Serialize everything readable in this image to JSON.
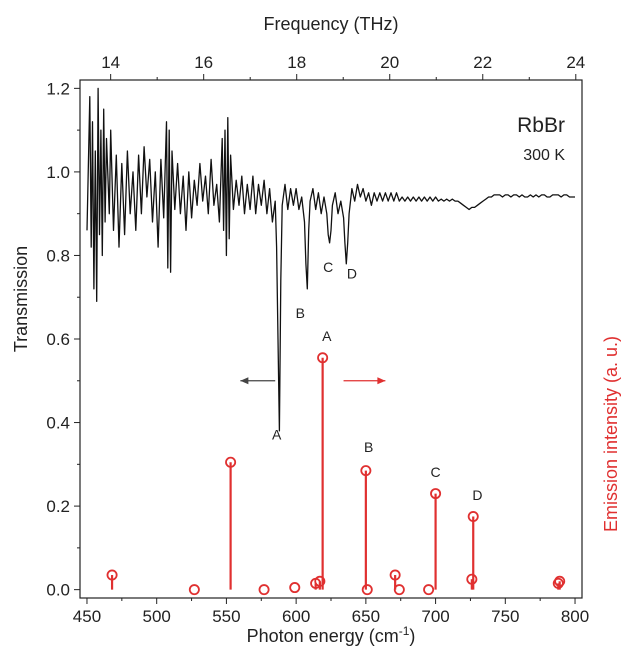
{
  "chart_data": {
    "type": "line",
    "x_axis": {
      "label": "Photon energy (cm",
      "label_sup": "-1",
      "label_suffix": ")",
      "range": [
        445,
        805
      ],
      "ticks": [
        450,
        500,
        550,
        600,
        650,
        700,
        750,
        800
      ]
    },
    "top_axis": {
      "label": "Frequency (THz)",
      "ticks": [
        14,
        16,
        18,
        20,
        22,
        24
      ],
      "cm1_per_thz": 33.356
    },
    "y_axis": {
      "label": "Transmission",
      "range": [
        -0.02,
        1.22
      ],
      "ticks": [
        0.0,
        0.2,
        0.4,
        0.6,
        0.8,
        1.0,
        1.2
      ],
      "tick_labels": [
        "0.0",
        "0.2",
        "0.4",
        "0.6",
        "0.8",
        "1.0",
        "1.2"
      ]
    },
    "y2_label": "Emission intensity (a. u.)",
    "sample_label": "RbBr",
    "temperature_label": "300 K",
    "series": [
      {
        "name": "Transmission",
        "color": "#111111",
        "style": "line",
        "points": [
          [
            450,
            0.86
          ],
          [
            452,
            1.18
          ],
          [
            453,
            0.82
          ],
          [
            454,
            1.12
          ],
          [
            455,
            0.72
          ],
          [
            456,
            1.05
          ],
          [
            457,
            0.69
          ],
          [
            458,
            1.2
          ],
          [
            459,
            0.85
          ],
          [
            460,
            1.1
          ],
          [
            461,
            0.8
          ],
          [
            462,
            1.15
          ],
          [
            463,
            0.88
          ],
          [
            464,
            1.08
          ],
          [
            466,
            0.9
          ],
          [
            467,
            1.1
          ],
          [
            469,
            0.86
          ],
          [
            471,
            1.04
          ],
          [
            473,
            0.82
          ],
          [
            475,
            1.02
          ],
          [
            477,
            0.85
          ],
          [
            479,
            1.05
          ],
          [
            481,
            0.9
          ],
          [
            483,
            1.0
          ],
          [
            485,
            0.86
          ],
          [
            487,
            1.04
          ],
          [
            489,
            0.9
          ],
          [
            491,
            1.06
          ],
          [
            493,
            0.94
          ],
          [
            495,
            1.03
          ],
          [
            497,
            0.88
          ],
          [
            499,
            1.0
          ],
          [
            501,
            0.82
          ],
          [
            503,
            1.03
          ],
          [
            505,
            0.89
          ],
          [
            507,
            1.12
          ],
          [
            508,
            0.77
          ],
          [
            509,
            1.1
          ],
          [
            510,
            0.76
          ],
          [
            511,
            1.05
          ],
          [
            513,
            0.91
          ],
          [
            515,
            1.02
          ],
          [
            517,
            0.9
          ],
          [
            519,
            0.99
          ],
          [
            521,
            0.86
          ],
          [
            523,
            1.0
          ],
          [
            525,
            0.89
          ],
          [
            527,
            0.98
          ],
          [
            529,
            0.92
          ],
          [
            531,
            1.02
          ],
          [
            533,
            0.93
          ],
          [
            535,
            0.99
          ],
          [
            537,
            0.9
          ],
          [
            539,
            1.03
          ],
          [
            541,
            0.92
          ],
          [
            543,
            0.97
          ],
          [
            545,
            0.88
          ],
          [
            547,
            1.08
          ],
          [
            548,
            0.86
          ],
          [
            549,
            1.1
          ],
          [
            550,
            0.8
          ],
          [
            551,
            1.13
          ],
          [
            552,
            0.84
          ],
          [
            553,
            1.04
          ],
          [
            555,
            0.91
          ],
          [
            557,
            0.98
          ],
          [
            559,
            0.92
          ],
          [
            561,
            0.99
          ],
          [
            563,
            0.9
          ],
          [
            565,
            0.97
          ],
          [
            567,
            0.91
          ],
          [
            569,
            0.99
          ],
          [
            571,
            0.9
          ],
          [
            573,
            0.97
          ],
          [
            575,
            0.92
          ],
          [
            577,
            0.98
          ],
          [
            579,
            0.9
          ],
          [
            581,
            0.96
          ],
          [
            583,
            0.88
          ],
          [
            585,
            0.93
          ],
          [
            586,
            0.82
          ],
          [
            587,
            0.6
          ],
          [
            588,
            0.38
          ],
          [
            589,
            0.74
          ],
          [
            590,
            0.92
          ],
          [
            592,
            0.97
          ],
          [
            594,
            0.91
          ],
          [
            596,
            0.96
          ],
          [
            598,
            0.92
          ],
          [
            600,
            0.96
          ],
          [
            602,
            0.91
          ],
          [
            604,
            0.94
          ],
          [
            606,
            0.88
          ],
          [
            607,
            0.78
          ],
          [
            608,
            0.72
          ],
          [
            609,
            0.86
          ],
          [
            610,
            0.93
          ],
          [
            612,
            0.96
          ],
          [
            614,
            0.91
          ],
          [
            616,
            0.95
          ],
          [
            618,
            0.9
          ],
          [
            620,
            0.94
          ],
          [
            622,
            0.9
          ],
          [
            623,
            0.85
          ],
          [
            624,
            0.83
          ],
          [
            625,
            0.86
          ],
          [
            626,
            0.92
          ],
          [
            628,
            0.95
          ],
          [
            630,
            0.9
          ],
          [
            632,
            0.93
          ],
          [
            634,
            0.89
          ],
          [
            635,
            0.83
          ],
          [
            636,
            0.78
          ],
          [
            637,
            0.83
          ],
          [
            638,
            0.9
          ],
          [
            640,
            0.96
          ],
          [
            642,
            0.93
          ],
          [
            644,
            0.97
          ],
          [
            646,
            0.94
          ],
          [
            648,
            0.96
          ],
          [
            650,
            0.93
          ],
          [
            652,
            0.95
          ],
          [
            654,
            0.92
          ],
          [
            656,
            0.95
          ],
          [
            658,
            0.93
          ],
          [
            660,
            0.95
          ],
          [
            662,
            0.93
          ],
          [
            664,
            0.95
          ],
          [
            666,
            0.93
          ],
          [
            668,
            0.95
          ],
          [
            670,
            0.93
          ],
          [
            672,
            0.95
          ],
          [
            674,
            0.93
          ],
          [
            676,
            0.94
          ],
          [
            678,
            0.93
          ],
          [
            680,
            0.94
          ],
          [
            682,
            0.93
          ],
          [
            684,
            0.94
          ],
          [
            686,
            0.93
          ],
          [
            688,
            0.94
          ],
          [
            690,
            0.93
          ],
          [
            692,
            0.94
          ],
          [
            694,
            0.93
          ],
          [
            696,
            0.94
          ],
          [
            698,
            0.93
          ],
          [
            700,
            0.94
          ],
          [
            702,
            0.93
          ],
          [
            704,
            0.935
          ],
          [
            706,
            0.93
          ],
          [
            708,
            0.935
          ],
          [
            710,
            0.93
          ],
          [
            712,
            0.935
          ],
          [
            714,
            0.93
          ],
          [
            716,
            0.93
          ],
          [
            718,
            0.925
          ],
          [
            720,
            0.92
          ],
          [
            722,
            0.915
          ],
          [
            724,
            0.91
          ],
          [
            726,
            0.915
          ],
          [
            728,
            0.915
          ],
          [
            730,
            0.92
          ],
          [
            732,
            0.925
          ],
          [
            734,
            0.93
          ],
          [
            736,
            0.935
          ],
          [
            738,
            0.94
          ],
          [
            740,
            0.94
          ],
          [
            742,
            0.945
          ],
          [
            744,
            0.945
          ],
          [
            746,
            0.945
          ],
          [
            748,
            0.94
          ],
          [
            750,
            0.945
          ],
          [
            752,
            0.945
          ],
          [
            754,
            0.94
          ],
          [
            756,
            0.945
          ],
          [
            758,
            0.945
          ],
          [
            760,
            0.94
          ],
          [
            762,
            0.945
          ],
          [
            764,
            0.94
          ],
          [
            766,
            0.94
          ],
          [
            768,
            0.945
          ],
          [
            770,
            0.94
          ],
          [
            772,
            0.945
          ],
          [
            774,
            0.94
          ],
          [
            776,
            0.945
          ],
          [
            778,
            0.945
          ],
          [
            780,
            0.94
          ],
          [
            782,
            0.94
          ],
          [
            784,
            0.945
          ],
          [
            786,
            0.945
          ],
          [
            788,
            0.945
          ],
          [
            790,
            0.94
          ],
          [
            792,
            0.945
          ],
          [
            794,
            0.945
          ],
          [
            796,
            0.94
          ],
          [
            800,
            0.94
          ]
        ]
      },
      {
        "name": "Emission intensity",
        "color": "#e03030",
        "style": "stem",
        "points": [
          [
            468,
            0.035
          ],
          [
            527,
            0.0
          ],
          [
            553,
            0.305
          ],
          [
            577,
            0.0
          ],
          [
            599,
            0.005
          ],
          [
            614,
            0.015
          ],
          [
            617,
            0.02
          ],
          [
            619,
            0.555
          ],
          [
            650,
            0.285
          ],
          [
            651,
            0.0
          ],
          [
            671,
            0.035
          ],
          [
            674,
            0.0
          ],
          [
            695,
            0.0
          ],
          [
            700,
            0.23
          ],
          [
            726,
            0.025
          ],
          [
            727,
            0.175
          ],
          [
            788,
            0.015
          ],
          [
            789,
            0.02
          ]
        ]
      }
    ],
    "annotations": {
      "transmission_dips": [
        {
          "label": "A",
          "x": 586,
          "y": 0.36
        },
        {
          "label": "B",
          "x": 603,
          "y": 0.65
        },
        {
          "label": "C",
          "x": 623,
          "y": 0.76
        },
        {
          "label": "D",
          "x": 640,
          "y": 0.745
        }
      ],
      "emission_peaks": [
        {
          "label": "A",
          "x": 622,
          "y": 0.595
        },
        {
          "label": "B",
          "x": 652,
          "y": 0.33
        },
        {
          "label": "C",
          "x": 700,
          "y": 0.27
        },
        {
          "label": "D",
          "x": 730,
          "y": 0.215
        }
      ],
      "arrows": [
        {
          "direction": "left",
          "color": "#444444",
          "x_from": 585,
          "x_to": 560,
          "y": 0.5
        },
        {
          "direction": "right",
          "color": "#e03030",
          "x_from": 634,
          "x_to": 664,
          "y": 0.5
        }
      ]
    },
    "grid": false,
    "legend": "none"
  }
}
